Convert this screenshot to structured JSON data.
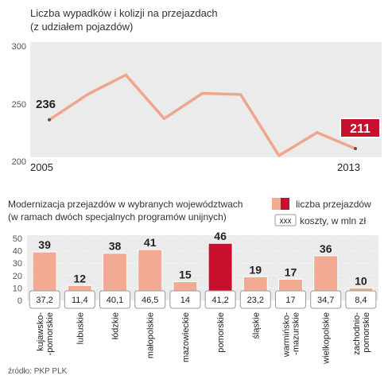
{
  "colors": {
    "line": "#f0a58c",
    "bar": "#f2ab92",
    "bar_highlight": "#c8102e",
    "plot_bg": "#ebebeb",
    "text": "#333333",
    "axis_text": "#555555"
  },
  "chart_data": [
    {
      "type": "line",
      "title": "Liczba wypadków i kolizji na przejazdach",
      "subtitle": "(z udziałem pojazdów)",
      "x": [
        2005,
        2006,
        2007,
        2008,
        2009,
        2010,
        2011,
        2012,
        2013
      ],
      "x_labels": [
        "2005",
        "2013"
      ],
      "series": [
        {
          "values": [
            236,
            258,
            275,
            237,
            259,
            258,
            205,
            225,
            211
          ]
        }
      ],
      "ylim": [
        200,
        300
      ],
      "y_ticks": [
        "300",
        "250",
        "200"
      ],
      "value_labels": {
        "start": "236",
        "end": "211"
      },
      "grid": false
    },
    {
      "type": "bar",
      "title": "Modernizacja przejazdów w wybranych województwach",
      "subtitle": "(w ramach dwóch specjalnych programów unijnych)",
      "legend": {
        "count_label": "liczba przejazdów",
        "cost_sample": "xxx",
        "cost_label": "koszty, w mln zł",
        "placement": "top-right"
      },
      "categories": [
        "kujawsko- -pomorskie",
        "lubuskie",
        "łódzkie",
        "małopolskie",
        "mazowieckie",
        "pomorskie",
        "śląskie",
        "warmińsko- -mazurskie",
        "wielkopolskie",
        "zachodnio- pomorskie"
      ],
      "category_lines": [
        [
          "kujawsko-",
          "-pomorskie"
        ],
        [
          "lubuskie"
        ],
        [
          "łódzkie"
        ],
        [
          "małopolskie"
        ],
        [
          "mazowieckie"
        ],
        [
          "pomorskie"
        ],
        [
          "śląskie"
        ],
        [
          "warmińsko-",
          "-mazurskie"
        ],
        [
          "wielkopolskie"
        ],
        [
          "zachodnio-",
          "pomorskie"
        ]
      ],
      "series": [
        {
          "name": "liczba przejazdów",
          "values": [
            39,
            12,
            38,
            41,
            15,
            46,
            19,
            17,
            36,
            10
          ]
        }
      ],
      "value_labels": [
        "39",
        "12",
        "38",
        "41",
        "15",
        "46",
        "19",
        "17",
        "36",
        "10"
      ],
      "costs": [
        "37,2",
        "11,4",
        "40,1",
        "46,5",
        "14",
        "41,2",
        "23,2",
        "17",
        "34,7",
        "8,4"
      ],
      "highlight_index": 5,
      "ylim": [
        0,
        50
      ],
      "y_ticks": [
        "50",
        "40",
        "30",
        "20",
        "10",
        "0"
      ]
    }
  ],
  "source": "źródło: PKP PLK"
}
